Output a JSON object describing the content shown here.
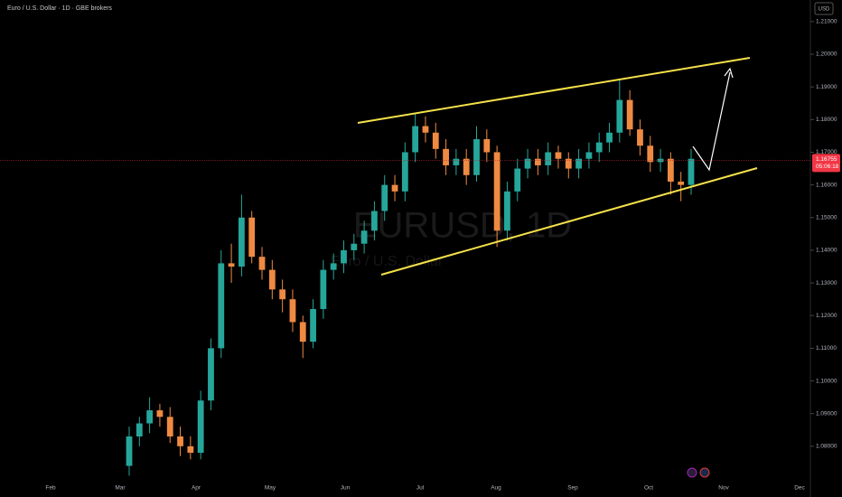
{
  "chart_data": {
    "type": "candlestick",
    "title": "Euro / U.S. Dollar · 1D · GBE brokers",
    "currency": "USD",
    "watermark_symbol": "EURUSD, 1D",
    "watermark_name": "Euro / U.S. Dollar",
    "up_color": "#26a69a",
    "down_color": "#ef8a43",
    "x_labels": [
      "Feb",
      "Mar",
      "Apr",
      "May",
      "Jun",
      "Jul",
      "Aug",
      "Sep",
      "Oct",
      "Nov",
      "Dec"
    ],
    "ylim": [
      1.07,
      1.2166
    ],
    "yticks": [
      {
        "value": 1.21,
        "label": "1.21000"
      },
      {
        "value": 1.2,
        "label": "1.20000"
      },
      {
        "value": 1.19,
        "label": "1.19000"
      },
      {
        "value": 1.18,
        "label": "1.18000"
      },
      {
        "value": 1.17,
        "label": "1.17000"
      },
      {
        "value": 1.16,
        "label": "1.16000"
      },
      {
        "value": 1.15,
        "label": "1.15000"
      },
      {
        "value": 1.14,
        "label": "1.14000"
      },
      {
        "value": 1.13,
        "label": "1.13000"
      },
      {
        "value": 1.12,
        "label": "1.12000"
      },
      {
        "value": 1.11,
        "label": "1.11000"
      },
      {
        "value": 1.1,
        "label": "1.10000"
      },
      {
        "value": 1.09,
        "label": "1.09000"
      },
      {
        "value": 1.08,
        "label": "1.08000"
      }
    ],
    "last_price": {
      "value": 1.16755,
      "label": "1.16755"
    },
    "countdown": "05:06:18",
    "series": [
      {
        "open": [
          1.074,
          1.083,
          1.087,
          1.091,
          1.089,
          1.083,
          1.08,
          1.078,
          1.094,
          1.11,
          1.136,
          1.135,
          1.15,
          1.138,
          1.134,
          1.128,
          1.125,
          1.118,
          1.112,
          1.122,
          1.134,
          1.136,
          1.14,
          1.142,
          1.146,
          1.152,
          1.16,
          1.158,
          1.17,
          1.178,
          1.176,
          1.171,
          1.166,
          1.168,
          1.163,
          1.174,
          1.17,
          1.146,
          1.158,
          1.165,
          1.168,
          1.166,
          1.17,
          1.168,
          1.165,
          1.168,
          1.17,
          1.173,
          1.176,
          1.186,
          1.177,
          1.172,
          1.167,
          1.168,
          1.161,
          1.16
        ],
        "high": [
          1.086,
          1.089,
          1.095,
          1.093,
          1.092,
          1.086,
          1.083,
          1.097,
          1.113,
          1.14,
          1.142,
          1.157,
          1.152,
          1.141,
          1.137,
          1.131,
          1.128,
          1.12,
          1.125,
          1.137,
          1.139,
          1.143,
          1.145,
          1.149,
          1.155,
          1.163,
          1.163,
          1.173,
          1.182,
          1.181,
          1.179,
          1.174,
          1.171,
          1.171,
          1.178,
          1.177,
          1.172,
          1.161,
          1.168,
          1.171,
          1.171,
          1.173,
          1.172,
          1.17,
          1.171,
          1.173,
          1.176,
          1.179,
          1.192,
          1.189,
          1.18,
          1.175,
          1.171,
          1.17,
          1.164,
          1.171
        ],
        "low": [
          1.071,
          1.08,
          1.084,
          1.086,
          1.081,
          1.077,
          1.076,
          1.076,
          1.091,
          1.107,
          1.13,
          1.132,
          1.136,
          1.131,
          1.125,
          1.121,
          1.115,
          1.107,
          1.11,
          1.119,
          1.131,
          1.133,
          1.137,
          1.139,
          1.143,
          1.149,
          1.155,
          1.155,
          1.167,
          1.173,
          1.168,
          1.163,
          1.163,
          1.16,
          1.161,
          1.167,
          1.141,
          1.143,
          1.155,
          1.162,
          1.163,
          1.163,
          1.165,
          1.162,
          1.162,
          1.165,
          1.167,
          1.17,
          1.173,
          1.175,
          1.169,
          1.164,
          1.164,
          1.157,
          1.155,
          1.157
        ],
        "close": [
          1.083,
          1.087,
          1.091,
          1.089,
          1.083,
          1.08,
          1.078,
          1.094,
          1.11,
          1.136,
          1.135,
          1.15,
          1.138,
          1.134,
          1.128,
          1.125,
          1.118,
          1.112,
          1.122,
          1.134,
          1.136,
          1.14,
          1.142,
          1.146,
          1.152,
          1.16,
          1.158,
          1.17,
          1.178,
          1.176,
          1.171,
          1.166,
          1.168,
          1.163,
          1.174,
          1.17,
          1.146,
          1.158,
          1.165,
          1.168,
          1.166,
          1.17,
          1.168,
          1.165,
          1.168,
          1.17,
          1.173,
          1.176,
          1.186,
          1.177,
          1.172,
          1.167,
          1.168,
          1.161,
          1.16,
          1.168
        ]
      }
    ]
  }
}
